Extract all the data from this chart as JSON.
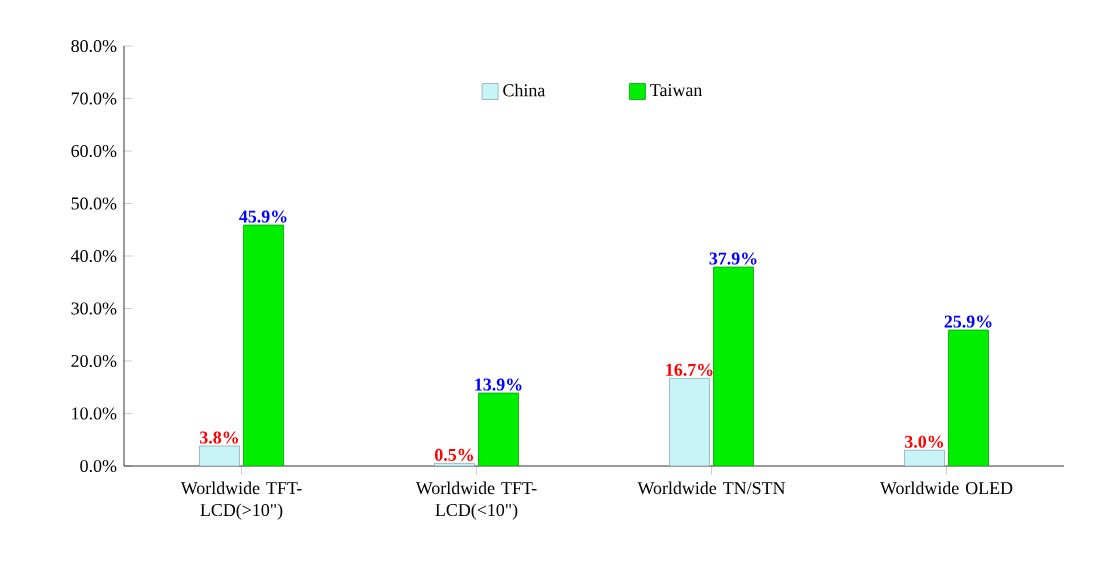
{
  "chart_data": {
    "type": "bar",
    "categories": [
      "Worldwide TFT-LCD(>10\")",
      "Worldwide TFT-LCD(<10\")",
      "Worldwide TN/STN",
      "Worldwide OLED"
    ],
    "series": [
      {
        "name": "China",
        "color": "#c8f4f8",
        "values": [
          3.8,
          0.5,
          16.7,
          3.0
        ],
        "value_labels": [
          "3.8%",
          "0.5%",
          "16.7%",
          "3.0%"
        ]
      },
      {
        "name": "Taiwan",
        "color": "#00ee00",
        "values": [
          45.9,
          13.9,
          37.9,
          25.9
        ],
        "value_labels": [
          "45.9%",
          "13.9%",
          "37.9%",
          "25.9%"
        ]
      }
    ],
    "ylim": [
      0,
      80
    ],
    "yticks": [
      {
        "value": 0,
        "label": "0.0%"
      },
      {
        "value": 10,
        "label": "10.0%"
      },
      {
        "value": 20,
        "label": "20.0%"
      },
      {
        "value": 30,
        "label": "30.0%"
      },
      {
        "value": 40,
        "label": "40.0%"
      },
      {
        "value": 50,
        "label": "50.0%"
      },
      {
        "value": 60,
        "label": "60.0%"
      },
      {
        "value": 70,
        "label": "70.0%"
      },
      {
        "value": 80,
        "label": "80.0%"
      }
    ],
    "legend": "top"
  }
}
